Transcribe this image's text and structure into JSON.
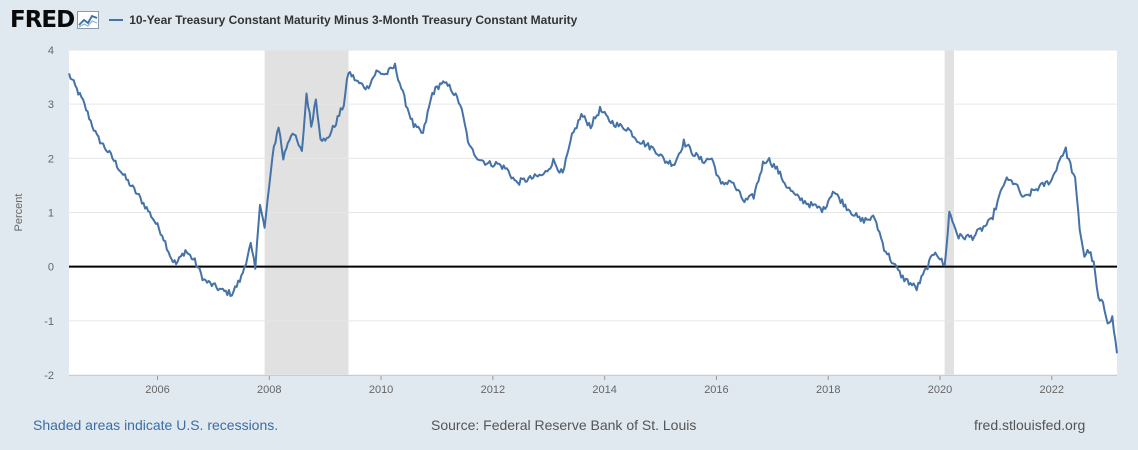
{
  "header": {
    "logo_text": "FRED",
    "logo_icon": "chart-line-icon",
    "series_title": "10-Year Treasury Constant Maturity Minus 3-Month Treasury Constant Maturity"
  },
  "footer": {
    "recession_note": "Shaded areas indicate U.S. recessions.",
    "source": "Source: Federal Reserve Bank of St. Louis",
    "url": "fred.stlouisfed.org"
  },
  "colors": {
    "series": "#4572a7",
    "recession": "#e1e1e1",
    "background": "#e1e9f0",
    "zero_line": "#000000"
  },
  "chart_data": {
    "type": "line",
    "title": "10-Year Treasury Constant Maturity Minus 3-Month Treasury Constant Maturity",
    "ylabel": "Percent",
    "xlabel": "",
    "x_range": [
      "2004-06",
      "2023-03"
    ],
    "ylim": [
      -2,
      4
    ],
    "x_ticks": [
      "2006",
      "2008",
      "2010",
      "2012",
      "2014",
      "2016",
      "2018",
      "2020",
      "2022"
    ],
    "y_ticks": [
      "-2",
      "-1",
      "0",
      "1",
      "2",
      "3",
      "4"
    ],
    "grid": "horizontal",
    "legend": "top-left",
    "recessions": [
      {
        "start": "2007-12",
        "end": "2009-06"
      },
      {
        "start": "2020-02",
        "end": "2020-04"
      }
    ],
    "series": [
      {
        "name": "10-Year Treasury Constant Maturity Minus 3-Month Treasury Constant Maturity",
        "units": "Percent",
        "points": [
          [
            "2004-06",
            3.55
          ],
          [
            "2004-09",
            3.05
          ],
          [
            "2004-12",
            2.4
          ],
          [
            "2005-03",
            2.05
          ],
          [
            "2005-06",
            1.65
          ],
          [
            "2005-09",
            1.3
          ],
          [
            "2005-12",
            0.9
          ],
          [
            "2006-02",
            0.6
          ],
          [
            "2006-04",
            0.15
          ],
          [
            "2006-05",
            0.05
          ],
          [
            "2006-07",
            0.3
          ],
          [
            "2006-09",
            0.1
          ],
          [
            "2006-11",
            -0.25
          ],
          [
            "2007-01",
            -0.35
          ],
          [
            "2007-03",
            -0.45
          ],
          [
            "2007-05",
            -0.5
          ],
          [
            "2007-07",
            -0.2
          ],
          [
            "2007-09",
            0.4
          ],
          [
            "2007-10",
            -0.05
          ],
          [
            "2007-11",
            1.2
          ],
          [
            "2007-12",
            0.7
          ],
          [
            "2008-01",
            1.5
          ],
          [
            "2008-02",
            2.2
          ],
          [
            "2008-03",
            2.6
          ],
          [
            "2008-04",
            2.0
          ],
          [
            "2008-05",
            2.3
          ],
          [
            "2008-06",
            2.5
          ],
          [
            "2008-07",
            2.3
          ],
          [
            "2008-08",
            2.1
          ],
          [
            "2008-09",
            3.2
          ],
          [
            "2008-10",
            2.6
          ],
          [
            "2008-11",
            3.1
          ],
          [
            "2008-12",
            2.4
          ],
          [
            "2009-01",
            2.3
          ],
          [
            "2009-03",
            2.6
          ],
          [
            "2009-05",
            3.0
          ],
          [
            "2009-06",
            3.6
          ],
          [
            "2009-08",
            3.4
          ],
          [
            "2009-10",
            3.3
          ],
          [
            "2009-12",
            3.6
          ],
          [
            "2010-02",
            3.55
          ],
          [
            "2010-04",
            3.7
          ],
          [
            "2010-06",
            3.1
          ],
          [
            "2010-08",
            2.6
          ],
          [
            "2010-10",
            2.45
          ],
          [
            "2010-12",
            3.2
          ],
          [
            "2011-02",
            3.4
          ],
          [
            "2011-04",
            3.3
          ],
          [
            "2011-06",
            3.0
          ],
          [
            "2011-08",
            2.2
          ],
          [
            "2011-10",
            2.0
          ],
          [
            "2011-12",
            1.9
          ],
          [
            "2012-02",
            1.9
          ],
          [
            "2012-04",
            1.8
          ],
          [
            "2012-06",
            1.55
          ],
          [
            "2012-08",
            1.6
          ],
          [
            "2012-10",
            1.65
          ],
          [
            "2012-12",
            1.7
          ],
          [
            "2013-02",
            1.95
          ],
          [
            "2013-04",
            1.7
          ],
          [
            "2013-06",
            2.4
          ],
          [
            "2013-08",
            2.8
          ],
          [
            "2013-10",
            2.6
          ],
          [
            "2013-12",
            2.9
          ],
          [
            "2014-02",
            2.7
          ],
          [
            "2014-04",
            2.6
          ],
          [
            "2014-06",
            2.55
          ],
          [
            "2014-08",
            2.35
          ],
          [
            "2014-10",
            2.25
          ],
          [
            "2014-12",
            2.15
          ],
          [
            "2015-02",
            1.95
          ],
          [
            "2015-04",
            1.9
          ],
          [
            "2015-06",
            2.3
          ],
          [
            "2015-08",
            2.1
          ],
          [
            "2015-10",
            1.95
          ],
          [
            "2015-12",
            2.0
          ],
          [
            "2016-02",
            1.5
          ],
          [
            "2016-04",
            1.6
          ],
          [
            "2016-07",
            1.2
          ],
          [
            "2016-09",
            1.3
          ],
          [
            "2016-11",
            1.9
          ],
          [
            "2016-12",
            2.0
          ],
          [
            "2017-02",
            1.8
          ],
          [
            "2017-04",
            1.5
          ],
          [
            "2017-06",
            1.3
          ],
          [
            "2017-09",
            1.15
          ],
          [
            "2017-12",
            1.05
          ],
          [
            "2018-02",
            1.4
          ],
          [
            "2018-05",
            1.1
          ],
          [
            "2018-08",
            0.85
          ],
          [
            "2018-11",
            0.9
          ],
          [
            "2019-01",
            0.35
          ],
          [
            "2019-03",
            0.05
          ],
          [
            "2019-05",
            -0.2
          ],
          [
            "2019-08",
            -0.4
          ],
          [
            "2019-10",
            -0.05
          ],
          [
            "2019-12",
            0.3
          ],
          [
            "2020-02",
            0.0
          ],
          [
            "2020-03",
            1.0
          ],
          [
            "2020-05",
            0.55
          ],
          [
            "2020-08",
            0.55
          ],
          [
            "2020-10",
            0.7
          ],
          [
            "2020-12",
            0.85
          ],
          [
            "2021-03",
            1.6
          ],
          [
            "2021-05",
            1.55
          ],
          [
            "2021-07",
            1.25
          ],
          [
            "2021-09",
            1.4
          ],
          [
            "2021-11",
            1.5
          ],
          [
            "2022-01",
            1.6
          ],
          [
            "2022-03",
            2.05
          ],
          [
            "2022-04",
            2.15
          ],
          [
            "2022-06",
            1.6
          ],
          [
            "2022-07",
            0.7
          ],
          [
            "2022-08",
            0.2
          ],
          [
            "2022-09",
            0.3
          ],
          [
            "2022-10",
            0.05
          ],
          [
            "2022-11",
            -0.6
          ],
          [
            "2022-12",
            -0.7
          ],
          [
            "2023-01",
            -1.0
          ],
          [
            "2023-02",
            -0.95
          ],
          [
            "2023-03",
            -1.6
          ]
        ]
      }
    ]
  }
}
